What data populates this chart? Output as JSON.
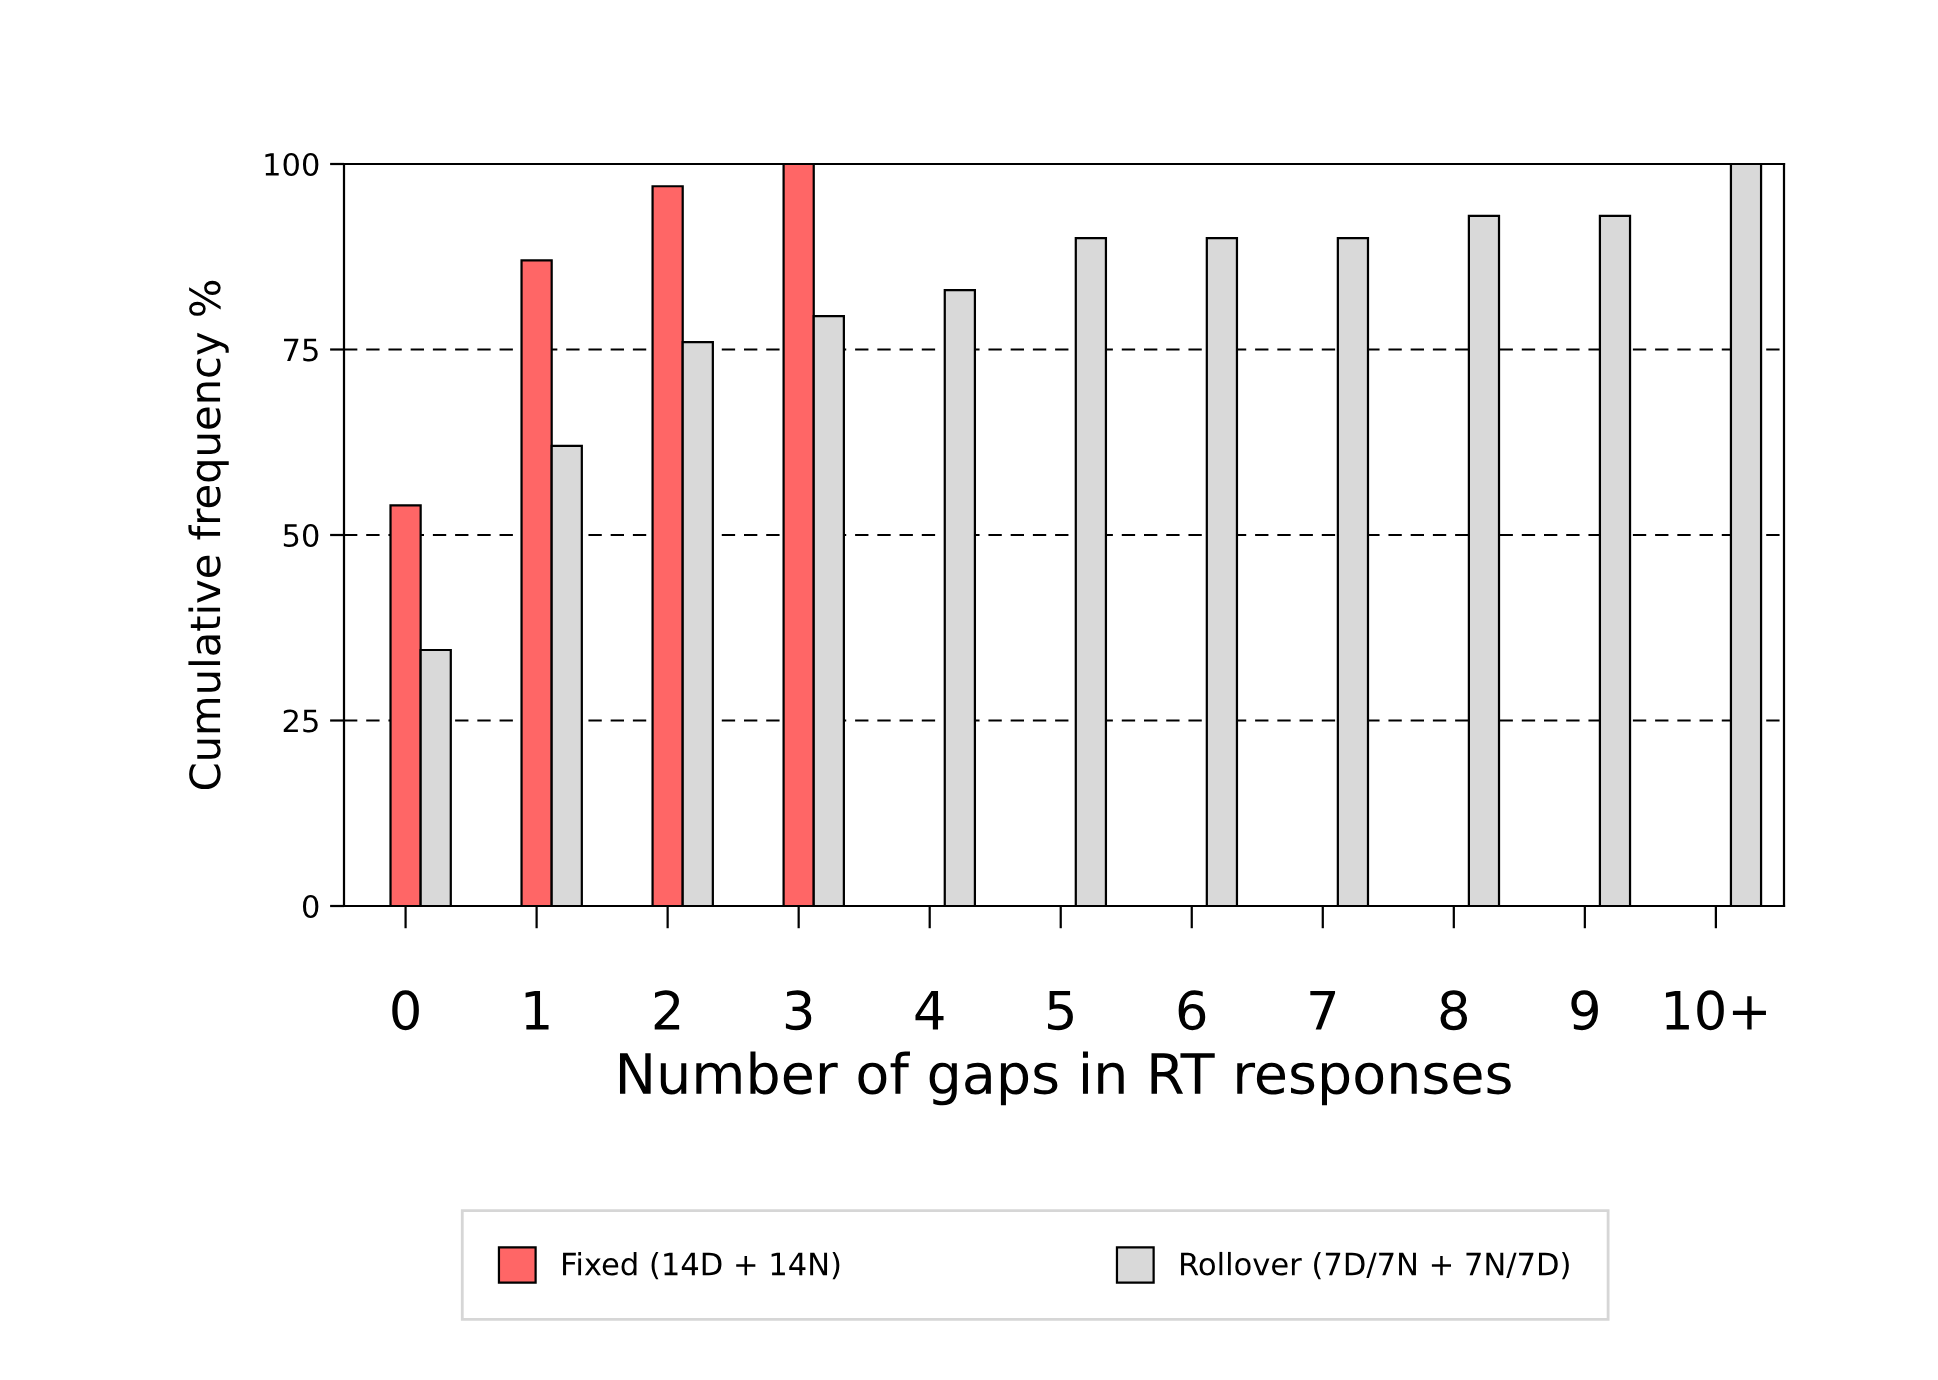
{
  "chart_data": {
    "type": "bar",
    "xlabel": "Number of gaps in RT responses",
    "ylabel": "Cumulative frequency %",
    "categories": [
      "0",
      "1",
      "2",
      "3",
      "4",
      "5",
      "6",
      "7",
      "8",
      "9",
      "10+"
    ],
    "series": [
      {
        "name": "Fixed (14D + 14N)",
        "color": "#ff6666",
        "values": [
          54,
          87,
          97,
          100,
          null,
          null,
          null,
          null,
          null,
          null,
          null
        ]
      },
      {
        "name": "Rollover (7D/7N + 7N/7D)",
        "color": "#d9d9d9",
        "values": [
          34.5,
          62,
          76,
          79.5,
          83,
          90,
          90,
          90,
          93,
          93,
          100
        ]
      }
    ],
    "ylim": [
      0,
      100
    ],
    "yticks": [
      0,
      25,
      50,
      75,
      100
    ],
    "grid": "y",
    "legend": "bottom"
  }
}
